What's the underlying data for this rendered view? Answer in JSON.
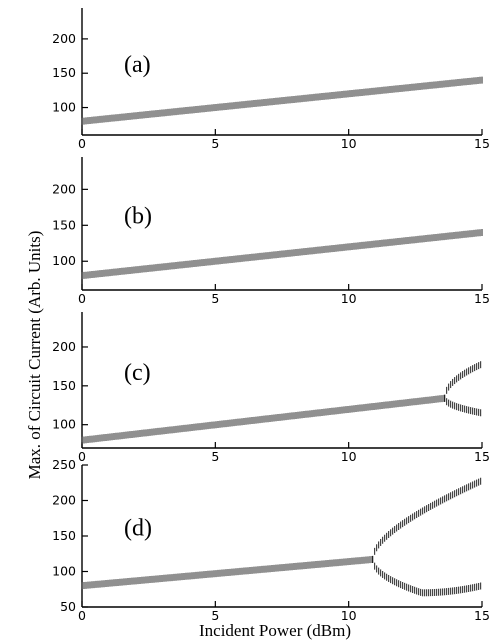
{
  "figure": {
    "ylabel": "Max. of Circuit Current (Arb. Units)",
    "xlabel": "Incident Power (dBm)"
  },
  "chart_data": [
    {
      "type": "scatter",
      "panel_label": "(a)",
      "xlim": [
        0,
        15
      ],
      "ylim": [
        60,
        245
      ],
      "xticks": [
        0,
        5,
        10,
        15
      ],
      "yticks": [
        100,
        150,
        200
      ],
      "branches": [
        {
          "x": [
            0,
            15
          ],
          "start": 80,
          "end": 140
        }
      ]
    },
    {
      "type": "scatter",
      "panel_label": "(b)",
      "xlim": [
        0,
        15
      ],
      "ylim": [
        60,
        245
      ],
      "xticks": [
        0,
        5,
        10,
        15
      ],
      "yticks": [
        100,
        150,
        200
      ],
      "branches": [
        {
          "x": [
            0,
            15
          ],
          "start": 80,
          "end": 140
        }
      ]
    },
    {
      "type": "scatter",
      "panel_label": "(c)",
      "xlim": [
        0,
        15
      ],
      "ylim": [
        70,
        245
      ],
      "xticks": [
        0,
        5,
        10,
        15
      ],
      "yticks": [
        100,
        150,
        200
      ],
      "branches": [
        {
          "x": [
            0,
            13.6
          ],
          "start": 80,
          "end": 134
        },
        {
          "x": [
            13.6,
            15
          ],
          "start": 134,
          "end": 178,
          "shape": "sqrt"
        },
        {
          "x": [
            13.6,
            15
          ],
          "start": 134,
          "end": 115,
          "shape": "sqrt"
        }
      ]
    },
    {
      "type": "scatter",
      "panel_label": "(d)",
      "xlim": [
        0,
        15
      ],
      "ylim": [
        50,
        250
      ],
      "xticks": [
        0,
        5,
        10,
        15
      ],
      "yticks": [
        50,
        100,
        150,
        200,
        250
      ],
      "branches": [
        {
          "x": [
            0,
            10.9
          ],
          "start": 80,
          "end": 117
        },
        {
          "x": [
            10.9,
            15
          ],
          "start": 117,
          "end": 228,
          "shape": "upper"
        },
        {
          "x": [
            10.9,
            15
          ],
          "start": 117,
          "end": 80,
          "shape": "lower",
          "min": 70
        }
      ]
    }
  ]
}
